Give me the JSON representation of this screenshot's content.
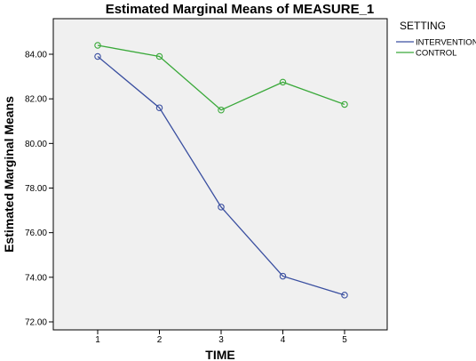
{
  "chart_data": {
    "type": "line",
    "title": "Estimated Marginal Means of MEASURE_1",
    "xlabel": "TIME",
    "ylabel": "Estimated Marginal Means",
    "categories": [
      "1",
      "2",
      "3",
      "4",
      "5"
    ],
    "ylim": [
      72,
      85
    ],
    "yticks": [
      "72.00",
      "74.00",
      "76.00",
      "78.00",
      "80.00",
      "82.00",
      "84.00"
    ],
    "legend": {
      "title": "SETTING",
      "placement": "top-right, outside plot"
    },
    "grid": false,
    "series": [
      {
        "name": "INTERVENTION",
        "color": "#3a4fa0",
        "values": [
          83.9,
          81.6,
          77.15,
          74.05,
          73.2
        ]
      },
      {
        "name": "CONTROL",
        "color": "#3aa93a",
        "values": [
          84.4,
          83.9,
          81.5,
          82.75,
          81.75
        ]
      }
    ]
  }
}
